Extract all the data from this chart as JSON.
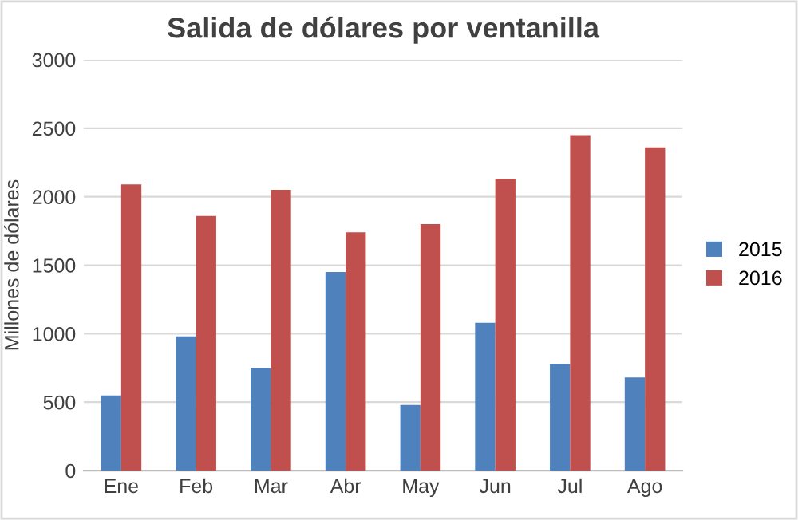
{
  "chart_data": {
    "type": "bar",
    "title": "Salida de dólares por ventanilla",
    "ylabel": "Millones de dólares",
    "categories": [
      "Ene",
      "Feb",
      "Mar",
      "Abr",
      "May",
      "Jun",
      "Jul",
      "Ago"
    ],
    "series": [
      {
        "name": "2015",
        "color": "#4f81bd",
        "values": [
          550,
          980,
          750,
          1450,
          480,
          1080,
          780,
          680
        ]
      },
      {
        "name": "2016",
        "color": "#c0504d",
        "values": [
          2090,
          1860,
          2050,
          1740,
          1800,
          2130,
          2450,
          2360
        ]
      }
    ],
    "ylim": [
      0,
      3000
    ],
    "yticks": [
      0,
      500,
      1000,
      1500,
      2000,
      2500,
      3000
    ],
    "grid": "y",
    "legend": "right"
  }
}
